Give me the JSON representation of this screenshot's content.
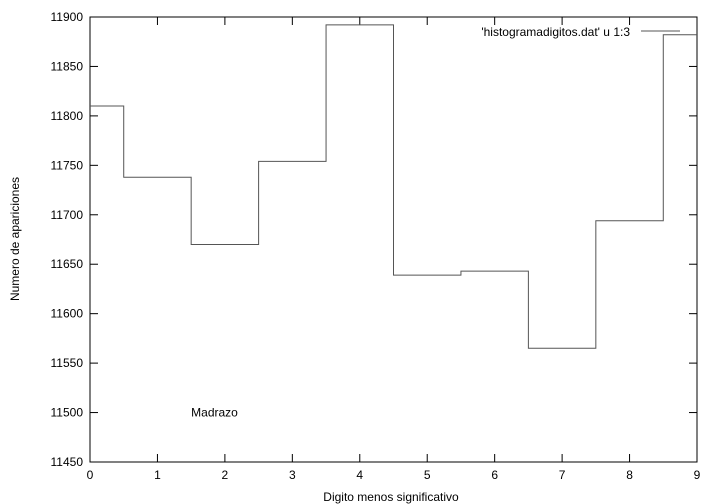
{
  "chart_data": {
    "type": "line",
    "style": "steps",
    "title": "",
    "xlabel": "Digito menos significativo",
    "ylabel": "Numero de apariciones",
    "xlim": [
      0,
      9
    ],
    "ylim": [
      11450,
      11900
    ],
    "x_ticks": [
      "0",
      "1",
      "2",
      "3",
      "4",
      "5",
      "6",
      "7",
      "8",
      "9"
    ],
    "y_ticks": [
      "11450",
      "11500",
      "11550",
      "11600",
      "11650",
      "11700",
      "11750",
      "11800",
      "11850",
      "11900"
    ],
    "grid": false,
    "legend_position": "top-right",
    "series": [
      {
        "name": "'histogramadigitos.dat' u 1:3",
        "color": "#555555",
        "x": [
          0,
          1,
          2,
          3,
          4,
          5,
          6,
          7,
          8,
          9
        ],
        "y": [
          11810,
          11738,
          11670,
          11754,
          11892,
          11639,
          11643,
          11565,
          11694,
          11882
        ]
      }
    ],
    "annotations": [
      {
        "text": "Madrazo",
        "x": 1.5,
        "y": 11500
      }
    ]
  }
}
